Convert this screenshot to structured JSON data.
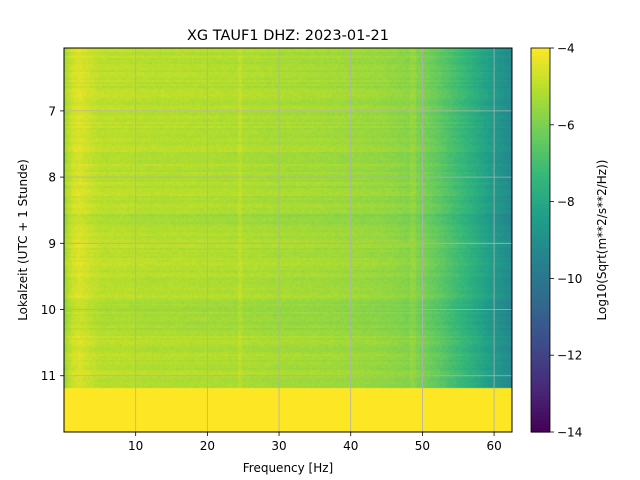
{
  "chart_data": {
    "type": "heatmap",
    "title": "XG TAUF1  DHZ: 2023-01-21",
    "xlabel": "Frequency [Hz]",
    "ylabel": "Lokalzeit (UTC + 1 Stunde)",
    "xlim": [
      0,
      62.5
    ],
    "ylim": [
      11.85,
      6.05
    ],
    "y_inverted": true,
    "xticks": [
      10,
      20,
      30,
      40,
      50,
      60
    ],
    "yticks": [
      7,
      8,
      9,
      10,
      11
    ],
    "grid": true,
    "data_time_range": [
      6.05,
      11.18
    ],
    "colorbar": {
      "label": "Log10(Sqrt(m**2/s**2/Hz))",
      "colormap": "viridis",
      "vmin": -14,
      "vmax": -4,
      "ticks": [
        -4,
        -6,
        -8,
        -10,
        -12,
        -14
      ]
    },
    "spectral_profile": {
      "frequency_hz": [
        0,
        1,
        2,
        3,
        5,
        8,
        12,
        16,
        20,
        25,
        30,
        35,
        40,
        44,
        46,
        48,
        50,
        52,
        54,
        56,
        58,
        60,
        62.5
      ],
      "log10_amplitude": [
        -5.4,
        -4.7,
        -4.5,
        -4.7,
        -5.0,
        -5.0,
        -5.1,
        -5.1,
        -5.15,
        -5.2,
        -5.3,
        -5.35,
        -5.45,
        -5.55,
        -5.65,
        -5.8,
        -6.0,
        -6.4,
        -6.9,
        -7.4,
        -8.0,
        -8.6,
        -9.3
      ]
    },
    "no_data_fill_value": -4
  }
}
